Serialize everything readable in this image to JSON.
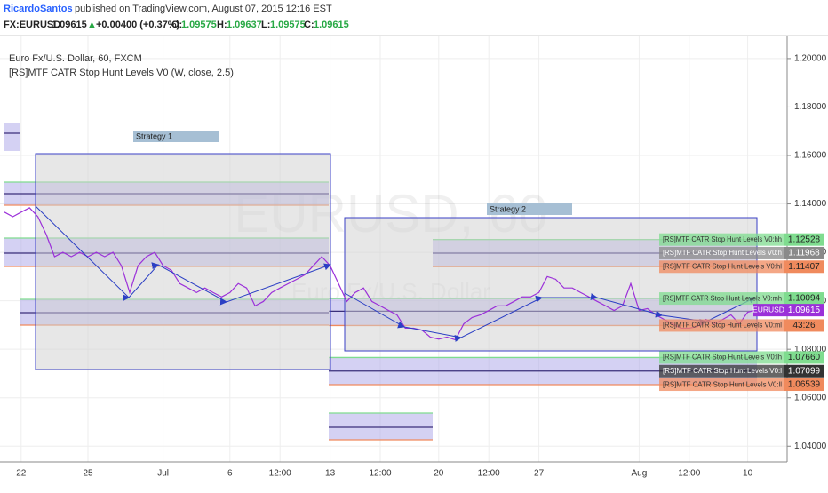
{
  "header": {
    "author": "RicardoSantos",
    "published": "published on TradingView.com, August 07, 2015 12:16 EST",
    "symbol": "FX:EURUSD",
    "last": "1.09615",
    "arrow": "▲",
    "change": "+0.00400 (+0.37%)",
    "o_label": "O:",
    "o": "1.09575",
    "h_label": "H:",
    "h": "1.09637",
    "l_label": "L:",
    "l": "1.09575",
    "c_label": "C:",
    "c": "1.09615"
  },
  "chart_data": {
    "type": "line",
    "title": "Euro Fx/U.S. Dollar, 60, FXCM",
    "subtitle": "[RS]MTF CATR Stop Hunt Levels V0 (W, close, 2.5)",
    "watermark": "EURUSD, 60",
    "watermark_sub": "Euro Fx/U.S. Dollar",
    "annotations": [
      "Strategy 1",
      "Strategy 2"
    ],
    "categories": [
      null,
      null,
      "22",
      null,
      null,
      null,
      null,
      null,
      null,
      null,
      "25",
      null,
      null,
      null,
      null,
      null,
      null,
      null,
      null,
      "Jul",
      null,
      null,
      null,
      null,
      null,
      null,
      null,
      "6",
      null,
      null,
      null,
      null,
      null,
      "12:00",
      null,
      null,
      null,
      null,
      null,
      "13",
      null,
      null,
      null,
      null,
      null,
      "12:00",
      null,
      null,
      null,
      null,
      null,
      null,
      "20",
      null,
      null,
      null,
      null,
      null,
      "12:00",
      null,
      null,
      null,
      null,
      null,
      "27",
      null,
      null,
      null,
      null,
      null,
      null,
      null,
      null,
      null,
      null,
      null,
      "Aug",
      null,
      null,
      null,
      null,
      null,
      "12:00",
      null,
      null,
      null,
      null,
      null,
      null,
      "10",
      null
    ],
    "series": [
      {
        "name": "EURUSD",
        "color": "#9b30d9",
        "values": [
          1.1366,
          1.1347,
          1.1366,
          1.1384,
          1.1347,
          1.1274,
          1.1182,
          1.12,
          1.1182,
          1.12,
          1.1182,
          1.12,
          1.1182,
          1.12,
          1.1145,
          1.1034,
          1.1145,
          1.1182,
          1.12,
          1.1145,
          1.1126,
          1.1071,
          1.1053,
          1.1034,
          1.1053,
          1.1034,
          1.1016,
          1.1034,
          1.1071,
          1.1053,
          1.0979,
          1.0997,
          1.1034,
          1.1053,
          1.1071,
          1.1089,
          1.1108,
          1.1145,
          1.1182,
          1.1145,
          1.1071,
          1.0997,
          1.1034,
          1.1053,
          1.0997,
          1.0979,
          1.096,
          1.0942,
          1.0887,
          1.0887,
          1.0879,
          1.085,
          1.0842,
          1.085,
          1.0839,
          1.0905,
          1.0931,
          1.0942,
          1.096,
          1.0979,
          1.0979,
          1.0997,
          1.1016,
          1.1016,
          1.1034,
          1.11,
          1.1089,
          1.1053,
          1.1053,
          1.1034,
          1.1016,
          1.0997,
          1.0979,
          1.096,
          1.0979,
          1.1071,
          1.096,
          1.0968,
          1.0942,
          1.0923,
          1.0905,
          1.0887,
          1.0887,
          1.0894,
          1.0923,
          1.0905,
          1.0923,
          1.0942,
          1.0905,
          1.0953,
          1.0962
        ]
      }
    ],
    "ylim": [
      1.0335,
      1.2095
    ],
    "yticks": [
      {
        "value": 1.04,
        "label": "1.04000"
      },
      {
        "value": 1.06,
        "label": "1.06000"
      },
      {
        "value": 1.08,
        "label": "1.08000"
      },
      {
        "value": 1.1,
        "label": "1.10000"
      },
      {
        "value": 1.12,
        "label": "1.12000"
      },
      {
        "value": 1.14,
        "label": "1.14000"
      },
      {
        "value": 1.16,
        "label": "1.16000"
      },
      {
        "value": 1.18,
        "label": "1.18000"
      },
      {
        "value": 1.2,
        "label": "1.20000"
      }
    ],
    "grid": true,
    "levels": [
      {
        "name": "[RS]MTF CATR Stop Hunt Levels V0:hh",
        "value": 1.12528,
        "value_label": "1.12528",
        "color": "#7fdc8f"
      },
      {
        "name": "[RS]MTF CATR Stop Hunt Levels V0:h",
        "value": 1.11968,
        "value_label": "1.11968",
        "color": "#8a8a8a"
      },
      {
        "name": "[RS]MTF CATR Stop Hunt Levels V0:hl",
        "value": 1.11407,
        "value_label": "1.11407",
        "color": "#f08a5d"
      },
      {
        "name": "[RS]MTF CATR Stop Hunt Levels V0:mh",
        "value": 1.10094,
        "value_label": "1.10094",
        "color": "#7fdc8f"
      },
      {
        "name": "[RS]MTF CATR Stop Hunt Levels V0:m",
        "value": 1.0957,
        "color": "#8a8a8a"
      },
      {
        "name": "[RS]MTF CATR Stop Hunt Levels V0:ml",
        "value": 1.0898,
        "value_label": "43:26",
        "color": "#f08a5d"
      },
      {
        "name": "[RS]MTF CATR Stop Hunt Levels V0:lh",
        "value": 1.0766,
        "value_label": "1.07660",
        "color": "#7fdc8f"
      },
      {
        "name": "[RS]MTF CATR Stop Hunt Levels V0:l",
        "value": 1.07099,
        "value_label": "1.07099",
        "color": "#333333"
      },
      {
        "name": "[RS]MTF CATR Stop Hunt Levels V0:ll",
        "value": 1.06539,
        "value_label": "1.06539",
        "color": "#f08a5d"
      }
    ],
    "last_price": {
      "name": "EURUSD",
      "value": 1.09615,
      "value_label": "1.09615",
      "color": "#9b30d9"
    }
  }
}
